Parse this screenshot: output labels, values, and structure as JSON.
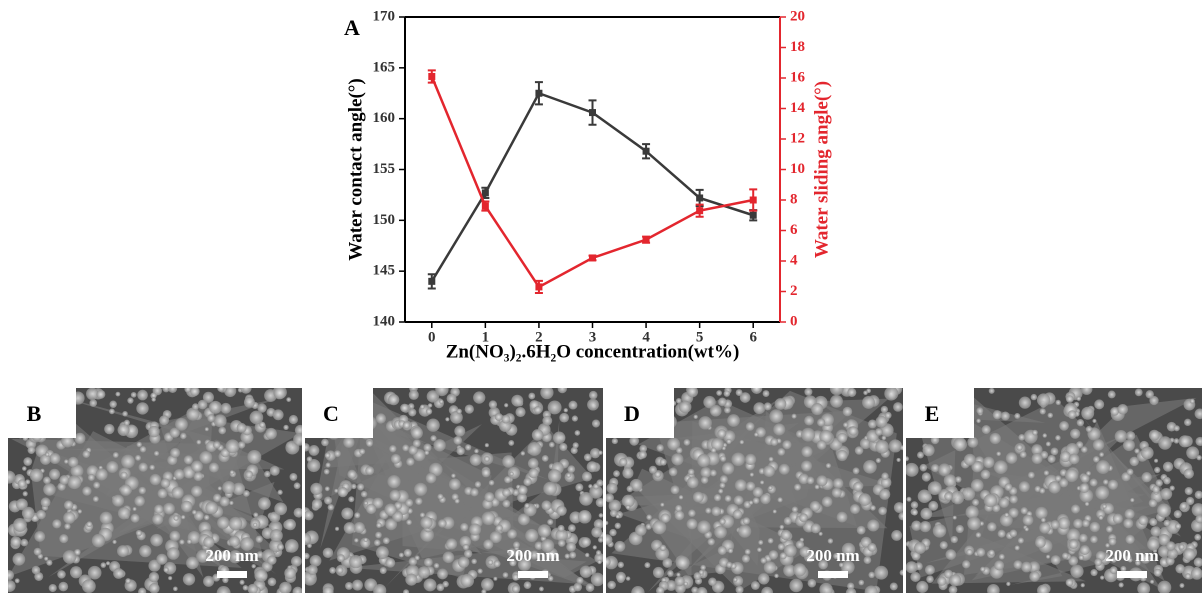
{
  "chart_data": {
    "type": "line",
    "title": "A",
    "xlabel": "Zn(NO₃)₂.6H₂O concentration(wt%)",
    "ylabel": "Water contact angle(°)",
    "y2label": "Water sliding angle(°)",
    "x": [
      0,
      1,
      2,
      3,
      4,
      5,
      6
    ],
    "xlim": [
      -0.5,
      6.5
    ],
    "xticks": [
      0,
      1,
      2,
      3,
      4,
      5,
      6
    ],
    "ylim": [
      140,
      170
    ],
    "yticks": [
      140,
      145,
      150,
      155,
      160,
      165,
      170
    ],
    "y2lim": [
      0,
      20
    ],
    "y2ticks": [
      0,
      2,
      4,
      6,
      8,
      10,
      12,
      14,
      16,
      18,
      20
    ],
    "series": [
      {
        "color": "#3a3a3a",
        "values": [
          144.0,
          152.7,
          162.5,
          160.6,
          156.8,
          152.2,
          150.5
        ],
        "errors": [
          0.7,
          0.5,
          1.1,
          1.2,
          0.7,
          0.8,
          0.5
        ]
      },
      {
        "color": "#e3262e",
        "axis": "y2",
        "values": [
          16.1,
          7.6,
          2.3,
          4.2,
          5.4,
          7.3,
          8.0
        ],
        "errors": [
          0.4,
          0.3,
          0.4,
          0.15,
          0.2,
          0.4,
          0.7
        ]
      }
    ]
  },
  "panels": [
    {
      "label": "B",
      "scale": "200 nm"
    },
    {
      "label": "C",
      "scale": "200 nm"
    },
    {
      "label": "D",
      "scale": "200 nm"
    },
    {
      "label": "E",
      "scale": "200 nm"
    }
  ]
}
